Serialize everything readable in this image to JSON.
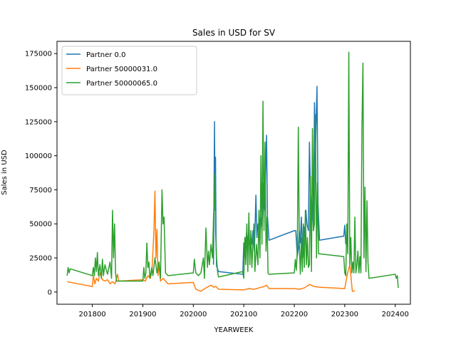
{
  "chart_data": {
    "type": "line",
    "title": "Sales in USD for SV",
    "xlabel": "YEARWEEK",
    "ylabel": "Sales in USD",
    "xlim": [
      201730,
      202430
    ],
    "ylim": [
      -9000,
      184000
    ],
    "x_ticks": [
      201800,
      201900,
      202000,
      202100,
      202200,
      202300,
      202400
    ],
    "y_ticks": [
      0,
      25000,
      50000,
      75000,
      100000,
      125000,
      150000,
      175000
    ],
    "legend_position": "upper-left",
    "grid": false,
    "series": [
      {
        "name": "Partner 0.0",
        "color": "#1f77b4",
        "points": [
          [
            202040,
            20000
          ],
          [
            202042,
            125000
          ],
          [
            202043,
            60000
          ],
          [
            202044,
            99000
          ],
          [
            202045,
            40000
          ],
          [
            202046,
            19000
          ],
          [
            202048,
            17000
          ],
          [
            202050,
            15000
          ],
          [
            202098,
            13000
          ],
          [
            202100,
            36000
          ],
          [
            202101,
            25000
          ],
          [
            202102,
            30000
          ],
          [
            202104,
            38000
          ],
          [
            202106,
            45000
          ],
          [
            202108,
            35000
          ],
          [
            202110,
            45000
          ],
          [
            202112,
            30000
          ],
          [
            202114,
            40000
          ],
          [
            202116,
            35000
          ],
          [
            202118,
            45000
          ],
          [
            202121,
            30000
          ],
          [
            202124,
            71000
          ],
          [
            202126,
            40000
          ],
          [
            202128,
            50000
          ],
          [
            202130,
            45000
          ],
          [
            202133,
            55000
          ],
          [
            202136,
            45000
          ],
          [
            202139,
            80000
          ],
          [
            202141,
            60000
          ],
          [
            202143,
            85000
          ],
          [
            202145,
            115000
          ],
          [
            202147,
            55000
          ],
          [
            202150,
            38000
          ],
          [
            202200,
            45000
          ],
          [
            202203,
            45000
          ],
          [
            202206,
            26000
          ],
          [
            202208,
            32000
          ],
          [
            202210,
            45000
          ],
          [
            202212,
            36000
          ],
          [
            202214,
            55000
          ],
          [
            202217,
            25000
          ],
          [
            202219,
            48000
          ],
          [
            202221,
            40000
          ],
          [
            202223,
            60000
          ],
          [
            202225,
            50000
          ],
          [
            202228,
            45000
          ],
          [
            202230,
            110000
          ],
          [
            202233,
            55000
          ],
          [
            202235,
            70000
          ],
          [
            202238,
            45000
          ],
          [
            202240,
            139000
          ],
          [
            202242,
            105000
          ],
          [
            202245,
            151000
          ],
          [
            202247,
            65000
          ],
          [
            202250,
            38000
          ],
          [
            202298,
            41000
          ],
          [
            202300,
            49000
          ],
          [
            202302,
            35000
          ]
        ]
      },
      {
        "name": "Partner 50000031.0",
        "color": "#ff7f0e",
        "points": [
          [
            201750,
            7500
          ],
          [
            201800,
            4000
          ],
          [
            201802,
            12000
          ],
          [
            201805,
            6000
          ],
          [
            201808,
            10000
          ],
          [
            201812,
            8000
          ],
          [
            201815,
            14000
          ],
          [
            201820,
            9000
          ],
          [
            201825,
            8000
          ],
          [
            201830,
            9000
          ],
          [
            201835,
            6000
          ],
          [
            201840,
            7500
          ],
          [
            201845,
            6000
          ],
          [
            201850,
            13000
          ],
          [
            201852,
            8000
          ],
          [
            201900,
            9000
          ],
          [
            201905,
            8000
          ],
          [
            201910,
            12000
          ],
          [
            201915,
            10000
          ],
          [
            201918,
            15000
          ],
          [
            201920,
            30000
          ],
          [
            201922,
            45000
          ],
          [
            201924,
            74000
          ],
          [
            201926,
            25000
          ],
          [
            201928,
            46000
          ],
          [
            201930,
            12000
          ],
          [
            201932,
            20000
          ],
          [
            201935,
            8000
          ],
          [
            201940,
            10000
          ],
          [
            201945,
            8000
          ],
          [
            201950,
            6000
          ],
          [
            202000,
            7000
          ],
          [
            202005,
            2000
          ],
          [
            202015,
            500
          ],
          [
            202025,
            3000
          ],
          [
            202035,
            5000
          ],
          [
            202040,
            3500
          ],
          [
            202045,
            4000
          ],
          [
            202050,
            2000
          ],
          [
            202100,
            1500
          ],
          [
            202110,
            2500
          ],
          [
            202120,
            2000
          ],
          [
            202130,
            3000
          ],
          [
            202140,
            4000
          ],
          [
            202145,
            5000
          ],
          [
            202150,
            2500
          ],
          [
            202200,
            2500
          ],
          [
            202210,
            2000
          ],
          [
            202220,
            3000
          ],
          [
            202230,
            5500
          ],
          [
            202240,
            4000
          ],
          [
            202250,
            3500
          ],
          [
            202300,
            2500
          ],
          [
            202305,
            13000
          ],
          [
            202310,
            20000
          ],
          [
            202315,
            500
          ],
          [
            202320,
            800
          ]
        ]
      },
      {
        "name": "Partner 50000065.0",
        "color": "#2ca02c",
        "points": [
          [
            201750,
            12000
          ],
          [
            201752,
            18000
          ],
          [
            201754,
            14000
          ],
          [
            201756,
            17000
          ],
          [
            201800,
            12000
          ],
          [
            201802,
            18000
          ],
          [
            201804,
            12000
          ],
          [
            201806,
            25000
          ],
          [
            201808,
            15000
          ],
          [
            201810,
            29000
          ],
          [
            201812,
            12000
          ],
          [
            201815,
            20000
          ],
          [
            201818,
            10000
          ],
          [
            201820,
            24000
          ],
          [
            201822,
            12000
          ],
          [
            201825,
            20000
          ],
          [
            201830,
            13000
          ],
          [
            201835,
            22000
          ],
          [
            201838,
            10000
          ],
          [
            201840,
            60000
          ],
          [
            201842,
            25000
          ],
          [
            201844,
            50000
          ],
          [
            201846,
            14000
          ],
          [
            201848,
            8000
          ],
          [
            201850,
            8000
          ],
          [
            201852,
            8000
          ],
          [
            201900,
            8000
          ],
          [
            201902,
            18000
          ],
          [
            201904,
            10000
          ],
          [
            201906,
            14000
          ],
          [
            201908,
            36000
          ],
          [
            201910,
            18000
          ],
          [
            201912,
            22000
          ],
          [
            201914,
            10000
          ],
          [
            201918,
            18000
          ],
          [
            201920,
            12000
          ],
          [
            201924,
            25000
          ],
          [
            201928,
            14000
          ],
          [
            201932,
            22000
          ],
          [
            201935,
            10000
          ],
          [
            201938,
            75000
          ],
          [
            201940,
            50000
          ],
          [
            201942,
            55000
          ],
          [
            201945,
            14000
          ],
          [
            201950,
            12000
          ],
          [
            202000,
            14000
          ],
          [
            202002,
            24000
          ],
          [
            202005,
            14000
          ],
          [
            202010,
            12000
          ],
          [
            202015,
            14000
          ],
          [
            202020,
            25000
          ],
          [
            202022,
            10000
          ],
          [
            202025,
            47000
          ],
          [
            202028,
            18000
          ],
          [
            202030,
            30000
          ],
          [
            202032,
            20000
          ],
          [
            202035,
            35000
          ],
          [
            202038,
            25000
          ],
          [
            202040,
            55000
          ],
          [
            202042,
            70000
          ],
          [
            202043,
            87000
          ],
          [
            202044,
            45000
          ],
          [
            202046,
            25000
          ],
          [
            202048,
            15000
          ],
          [
            202050,
            11000
          ],
          [
            202098,
            15000
          ],
          [
            202100,
            10000
          ],
          [
            202102,
            40000
          ],
          [
            202104,
            20000
          ],
          [
            202106,
            50000
          ],
          [
            202108,
            15000
          ],
          [
            202110,
            58000
          ],
          [
            202112,
            20000
          ],
          [
            202114,
            45000
          ],
          [
            202116,
            18000
          ],
          [
            202120,
            50000
          ],
          [
            202122,
            15000
          ],
          [
            202125,
            35000
          ],
          [
            202128,
            20000
          ],
          [
            202130,
            60000
          ],
          [
            202132,
            25000
          ],
          [
            202134,
            100000
          ],
          [
            202136,
            35000
          ],
          [
            202138,
            140000
          ],
          [
            202140,
            45000
          ],
          [
            202142,
            110000
          ],
          [
            202144,
            30000
          ],
          [
            202146,
            55000
          ],
          [
            202148,
            14000
          ],
          [
            202150,
            13000
          ],
          [
            202200,
            14000
          ],
          [
            202202,
            24000
          ],
          [
            202204,
            16000
          ],
          [
            202206,
            30000
          ],
          [
            202208,
            121000
          ],
          [
            202210,
            35000
          ],
          [
            202212,
            13000
          ],
          [
            202214,
            40000
          ],
          [
            202216,
            15000
          ],
          [
            202218,
            50000
          ],
          [
            202220,
            18000
          ],
          [
            202222,
            60000
          ],
          [
            202224,
            20000
          ],
          [
            202226,
            40000
          ],
          [
            202228,
            18000
          ],
          [
            202230,
            20000
          ],
          [
            202232,
            85000
          ],
          [
            202234,
            15000
          ],
          [
            202236,
            120000
          ],
          [
            202238,
            45000
          ],
          [
            202240,
            50000
          ],
          [
            202242,
            130000
          ],
          [
            202244,
            25000
          ],
          [
            202246,
            80000
          ],
          [
            202248,
            28000
          ],
          [
            202250,
            28000
          ],
          [
            202298,
            26000
          ],
          [
            202300,
            14000
          ],
          [
            202302,
            12000
          ],
          [
            202304,
            50000
          ],
          [
            202306,
            28000
          ],
          [
            202308,
            176000
          ],
          [
            202310,
            20000
          ],
          [
            202312,
            40000
          ],
          [
            202314,
            14000
          ],
          [
            202316,
            22000
          ],
          [
            202318,
            14000
          ],
          [
            202320,
            55000
          ],
          [
            202322,
            14000
          ],
          [
            202324,
            20000
          ],
          [
            202326,
            30000
          ],
          [
            202328,
            14000
          ],
          [
            202330,
            26000
          ],
          [
            202332,
            14000
          ],
          [
            202334,
            120000
          ],
          [
            202336,
            168000
          ],
          [
            202338,
            25000
          ],
          [
            202340,
            77000
          ],
          [
            202342,
            15000
          ],
          [
            202344,
            67000
          ],
          [
            202346,
            22000
          ],
          [
            202348,
            10000
          ],
          [
            202400,
            13000
          ],
          [
            202402,
            10000
          ],
          [
            202404,
            12000
          ],
          [
            202406,
            3000
          ]
        ]
      }
    ]
  }
}
